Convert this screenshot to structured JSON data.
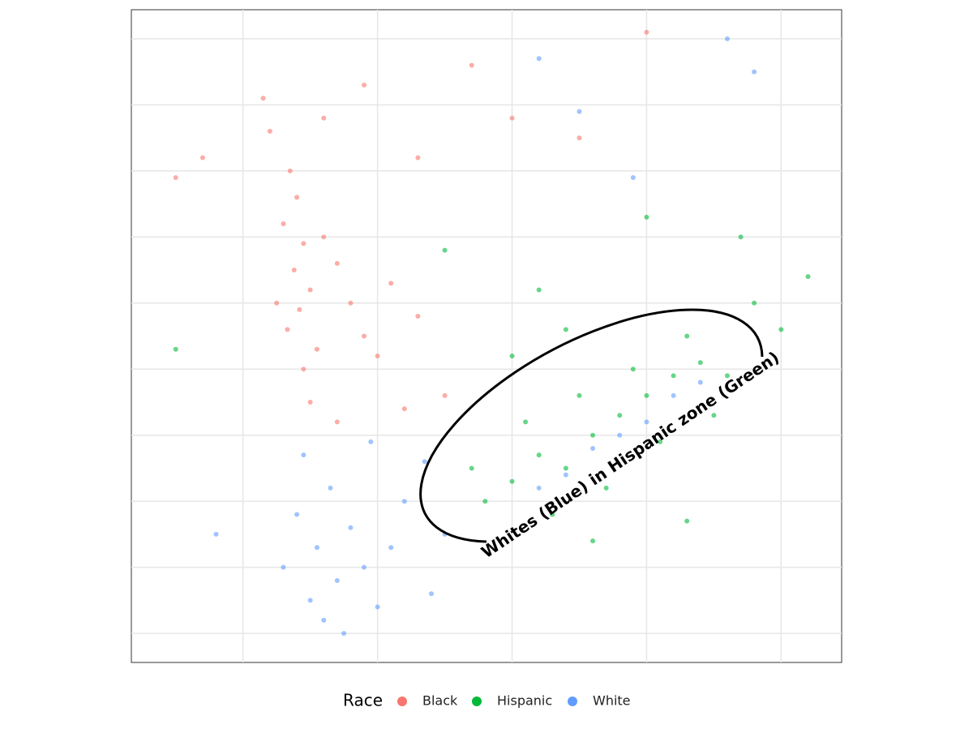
{
  "chart_data": {
    "type": "scatter",
    "xlim": [
      -0.83,
      4.45
    ],
    "ylim": [
      -0.44,
      9.44
    ],
    "xgrid": [
      0,
      1,
      2,
      3,
      4
    ],
    "ygrid": [
      0,
      1,
      2,
      3,
      4,
      5,
      6,
      7,
      8,
      9
    ],
    "legend_title": "Race",
    "legend_position": "bottom",
    "annotation": "Whites (Blue) in Hispanic zone (Green)",
    "series": [
      {
        "name": "Black",
        "color": "#F8766D",
        "x": [
          0.35,
          0.4,
          0.3,
          0.45,
          0.38,
          0.5,
          0.42,
          0.33,
          0.55,
          0.6,
          0.7,
          0.8,
          0.9,
          1.0,
          1.1,
          1.3,
          1.5,
          0.2,
          0.15,
          0.6,
          0.9,
          1.3,
          1.7,
          2.0,
          -0.3,
          -0.5,
          0.5,
          0.7,
          1.2,
          2.5,
          3.0,
          0.25,
          0.45
        ],
        "values": [
          7.0,
          6.6,
          6.2,
          5.9,
          5.5,
          5.2,
          4.9,
          4.6,
          4.3,
          6.0,
          5.6,
          5.0,
          4.5,
          4.2,
          5.3,
          4.8,
          3.6,
          7.6,
          8.1,
          7.8,
          8.3,
          7.2,
          8.6,
          7.8,
          7.2,
          6.9,
          3.5,
          3.2,
          3.4,
          7.5,
          9.1,
          5.0,
          4.0
        ]
      },
      {
        "name": "Hispanic",
        "color": "#00BA38",
        "x": [
          1.8,
          2.0,
          2.2,
          2.4,
          2.6,
          2.8,
          3.0,
          3.2,
          3.4,
          3.6,
          2.5,
          2.9,
          3.3,
          2.1,
          1.7,
          2.3,
          2.7,
          3.1,
          3.5,
          2.0,
          2.4,
          3.8,
          4.0,
          3.7,
          4.2,
          3.0,
          2.2,
          1.5,
          -0.5,
          3.3,
          2.6
        ],
        "values": [
          2.0,
          2.3,
          2.7,
          2.5,
          3.0,
          3.3,
          3.6,
          3.9,
          4.1,
          3.9,
          3.6,
          4.0,
          4.5,
          3.2,
          2.5,
          1.8,
          2.2,
          2.9,
          3.3,
          4.2,
          4.6,
          5.0,
          4.6,
          6.0,
          5.4,
          6.3,
          5.2,
          5.8,
          4.3,
          1.7,
          1.4
        ]
      },
      {
        "name": "White",
        "color": "#619CFF",
        "x": [
          0.5,
          0.6,
          0.7,
          0.55,
          0.4,
          0.65,
          0.8,
          0.9,
          1.0,
          1.1,
          1.2,
          1.35,
          1.5,
          0.45,
          0.95,
          0.3,
          1.4,
          0.75,
          2.4,
          2.6,
          2.8,
          3.0,
          3.2,
          3.4,
          2.2,
          2.5,
          3.6,
          3.8,
          2.9,
          2.2,
          -0.2
        ],
        "values": [
          0.5,
          0.2,
          0.8,
          1.3,
          1.8,
          2.2,
          1.6,
          1.0,
          0.4,
          1.3,
          2.0,
          2.6,
          1.5,
          2.7,
          2.9,
          1.0,
          0.6,
          0.0,
          2.4,
          2.8,
          3.0,
          3.2,
          3.6,
          3.8,
          2.2,
          7.9,
          9.0,
          8.5,
          6.9,
          8.7,
          1.5
        ]
      }
    ]
  }
}
